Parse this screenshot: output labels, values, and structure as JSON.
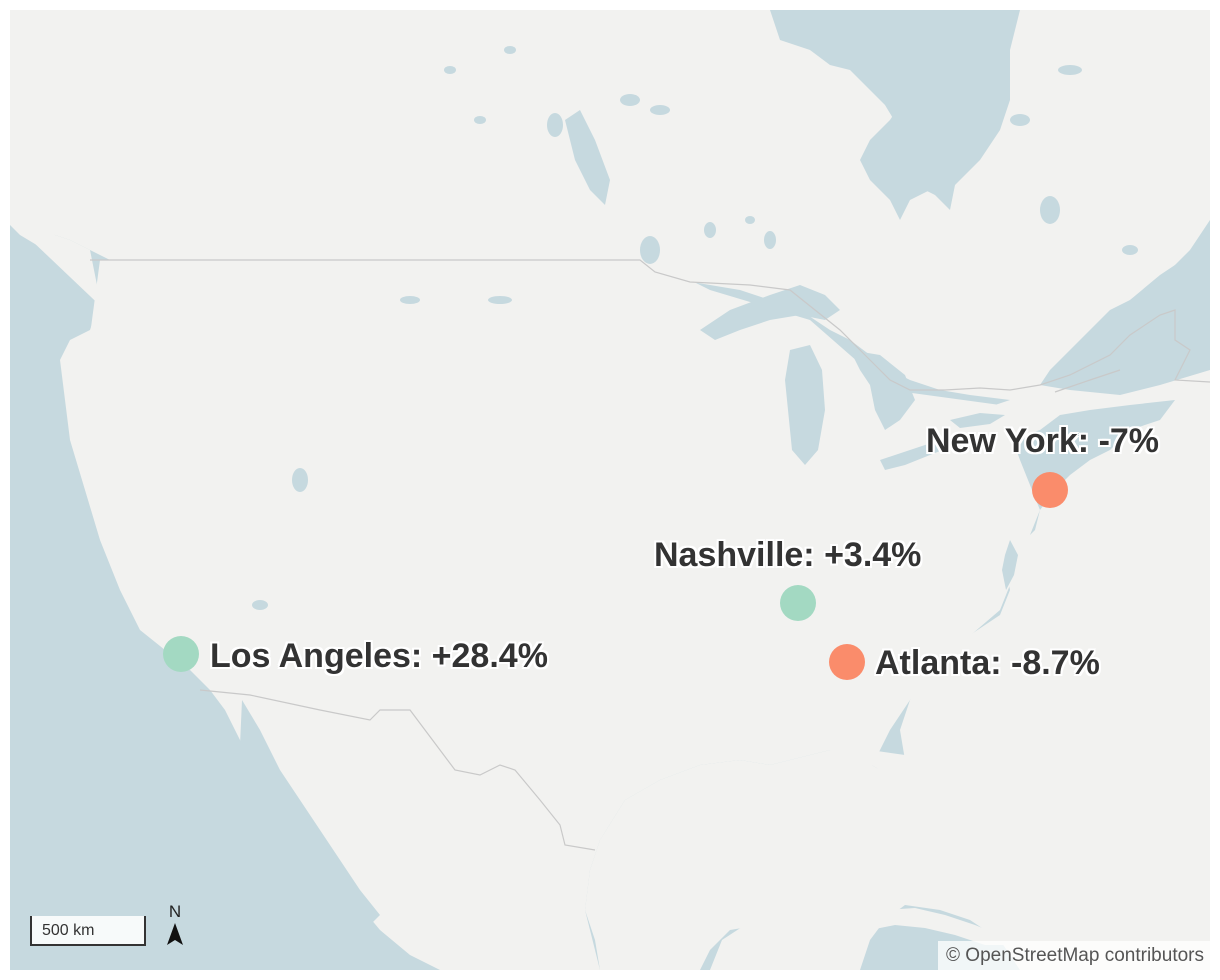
{
  "map": {
    "colors": {
      "water": "#c6d9df",
      "land": "#f2f2f0",
      "border": "#c9c9c9",
      "label_text": "#333333",
      "positive_marker": "#a3d9c2",
      "negative_marker": "#fa8c6b"
    },
    "cities": [
      {
        "name": "New York",
        "label": "New York: -7%",
        "change_percent": -7,
        "sign": "negative"
      },
      {
        "name": "Nashville",
        "label": "Nashville: +3.4%",
        "change_percent": 3.4,
        "sign": "positive"
      },
      {
        "name": "Los Angeles",
        "label": "Los Angeles: +28.4%",
        "change_percent": 28.4,
        "sign": "positive"
      },
      {
        "name": "Atlanta",
        "label": "Atlanta: -8.7%",
        "change_percent": -8.7,
        "sign": "negative"
      }
    ],
    "scale_bar": {
      "label": "500 km"
    },
    "north_arrow": {
      "label": "N",
      "icon": "north-arrow-icon"
    },
    "attribution": "© OpenStreetMap contributors"
  }
}
